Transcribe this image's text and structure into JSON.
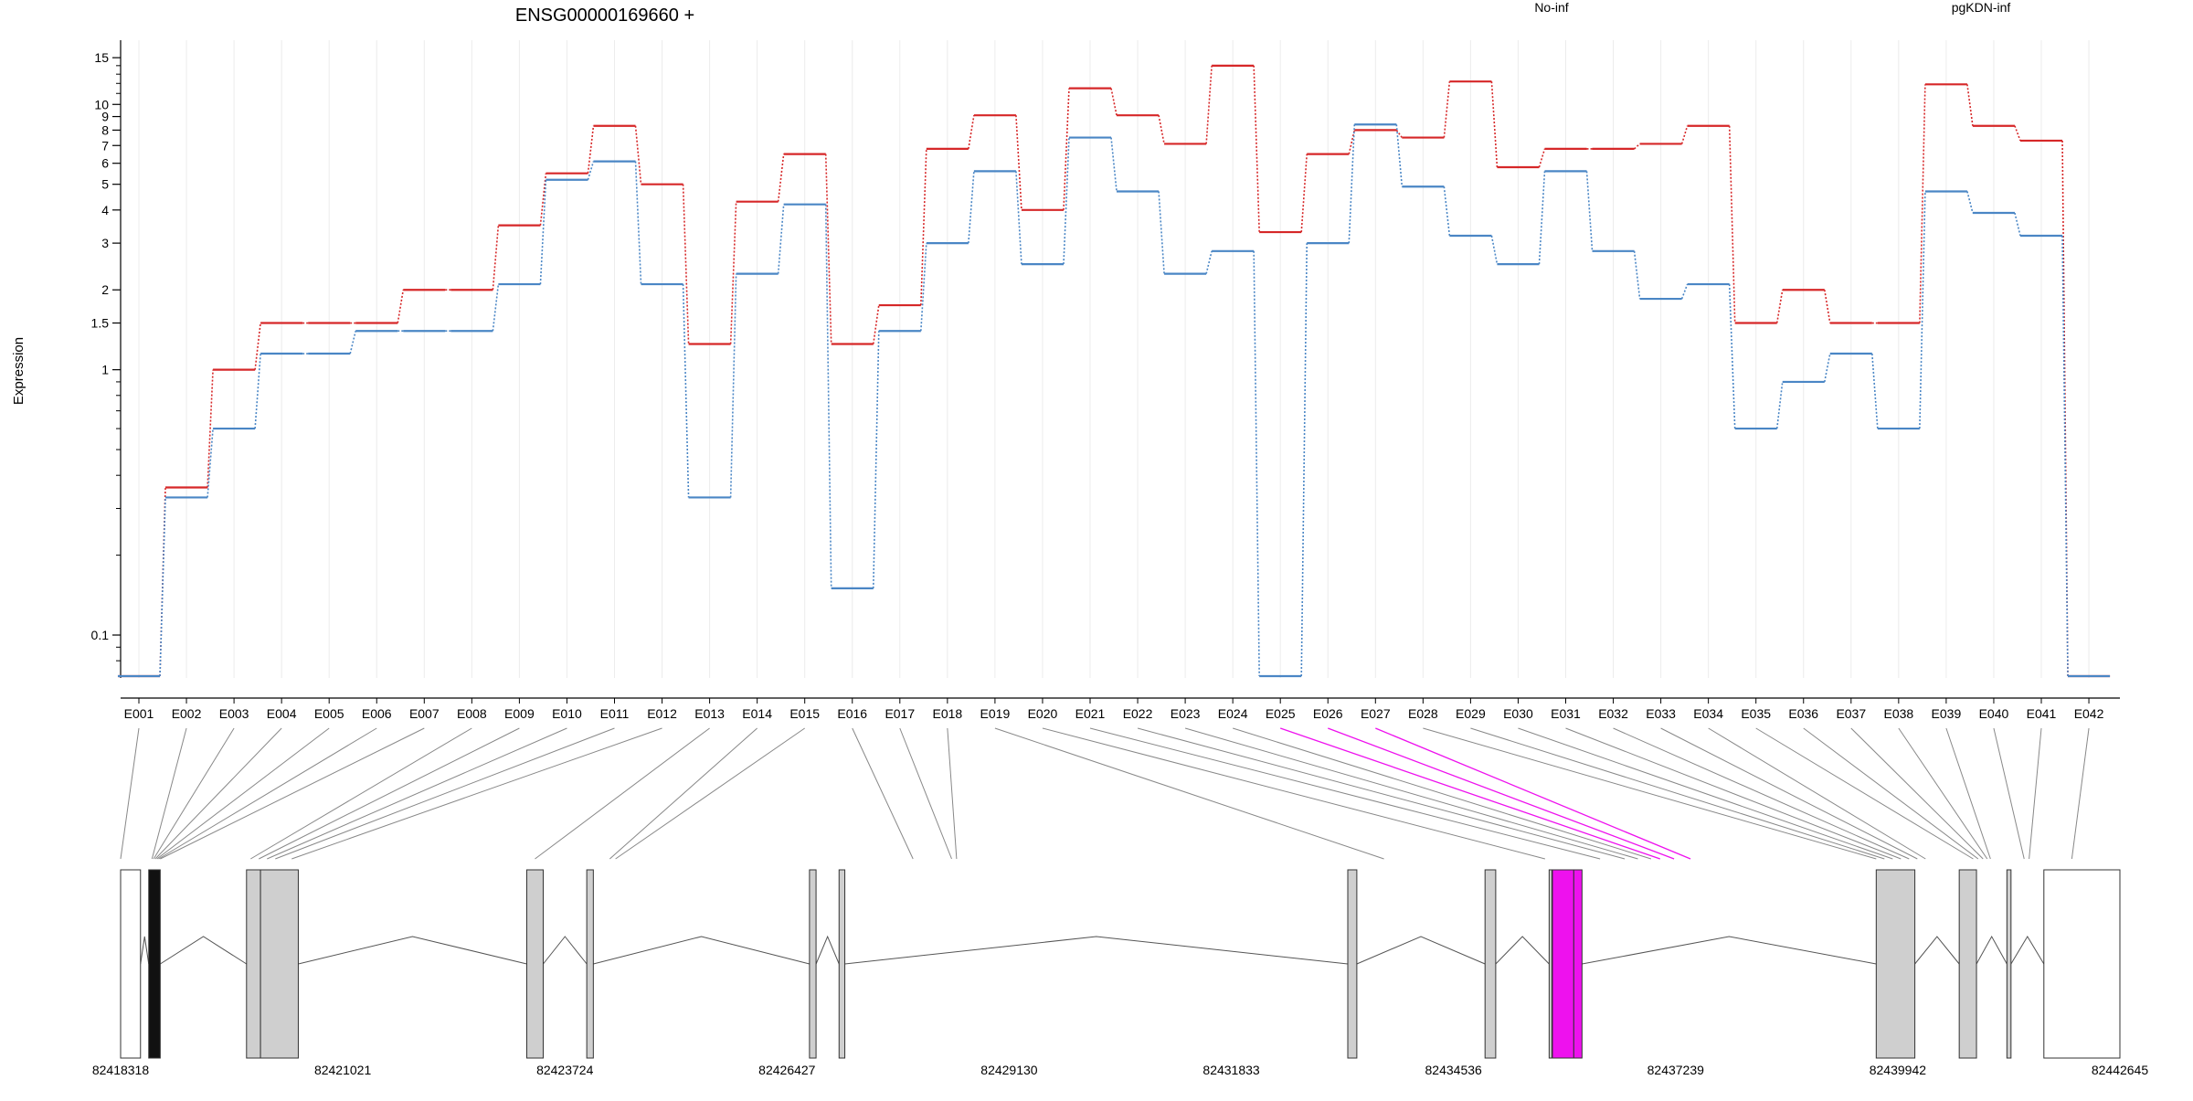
{
  "chart_data": {
    "type": "line",
    "title": "ENSG00000169660 +",
    "ylabel": "Expression",
    "xlabel": "",
    "y_scale": "log",
    "ylim": [
      0.07,
      16
    ],
    "grid": true,
    "legend_placement": "top-right",
    "y_ticks": [
      0.1,
      1,
      1.5,
      2,
      3,
      4,
      5,
      6,
      7,
      8,
      9,
      10,
      15
    ],
    "y_tick_labels": [
      "0.1",
      "1",
      "1.5",
      "2",
      "3",
      "4",
      "5",
      "6",
      "7",
      "8",
      "9",
      "10",
      "15"
    ],
    "categories": [
      "E001",
      "E002",
      "E003",
      "E004",
      "E005",
      "E006",
      "E007",
      "E008",
      "E009",
      "E010",
      "E011",
      "E012",
      "E013",
      "E014",
      "E015",
      "E016",
      "E017",
      "E018",
      "E019",
      "E020",
      "E021",
      "E022",
      "E023",
      "E024",
      "E025",
      "E026",
      "E027",
      "E028",
      "E029",
      "E030",
      "E031",
      "E032",
      "E033",
      "E034",
      "E035",
      "E036",
      "E037",
      "E038",
      "E039",
      "E040",
      "E041",
      "E042"
    ],
    "series": [
      {
        "name": "No-inf",
        "color": "#d62728",
        "values": [
          0.07,
          0.36,
          1.0,
          1.5,
          1.5,
          1.5,
          2.0,
          2.0,
          3.5,
          5.5,
          8.3,
          5.0,
          1.25,
          4.3,
          6.5,
          1.25,
          1.75,
          6.8,
          9.1,
          4.0,
          11.5,
          9.1,
          7.1,
          14.0,
          3.3,
          6.5,
          8.0,
          7.5,
          12.2,
          5.8,
          6.8,
          6.8,
          7.1,
          8.3,
          1.5,
          2.0,
          1.5,
          1.5,
          11.9,
          8.3,
          7.3,
          0.07
        ]
      },
      {
        "name": "pgKDN-inf",
        "color": "#4a86c5",
        "values": [
          0.07,
          0.33,
          0.6,
          1.15,
          1.15,
          1.4,
          1.4,
          1.4,
          2.1,
          5.2,
          6.1,
          2.1,
          0.33,
          2.3,
          4.2,
          0.15,
          1.4,
          3.0,
          5.6,
          2.5,
          7.5,
          4.7,
          2.3,
          2.8,
          0.07,
          3.0,
          8.4,
          4.9,
          3.2,
          2.5,
          5.6,
          2.8,
          1.85,
          2.1,
          0.6,
          0.9,
          1.15,
          0.6,
          4.7,
          3.9,
          3.2,
          0.07
        ]
      }
    ],
    "gene_model": {
      "coordinate_labels": [
        "82418318",
        "82421021",
        "82423724",
        "82426427",
        "82429130",
        "82431833",
        "82434536",
        "82437239",
        "82439942",
        "82442645"
      ],
      "start": 82418318,
      "end": 82442645,
      "highlighted_exon": "E025",
      "highlight_color": "#ee11ee",
      "exon_genomic_positions": [
        82418318,
        82418700,
        82418720,
        82418740,
        82418760,
        82418780,
        82418800,
        82419900,
        82420000,
        82420100,
        82420200,
        82420400,
        82423360,
        82424270,
        82424340,
        82427960,
        82428430,
        82428490,
        82433690,
        82435650,
        82436320,
        82436620,
        82436780,
        82436940,
        82437050,
        82437220,
        82437420,
        82439680,
        82439780,
        82439880,
        82439980,
        82440080,
        82440180,
        82440280,
        82440860,
        82440920,
        82440980,
        82441030,
        82441070,
        82441480,
        82441540,
        82442060
      ]
    }
  }
}
